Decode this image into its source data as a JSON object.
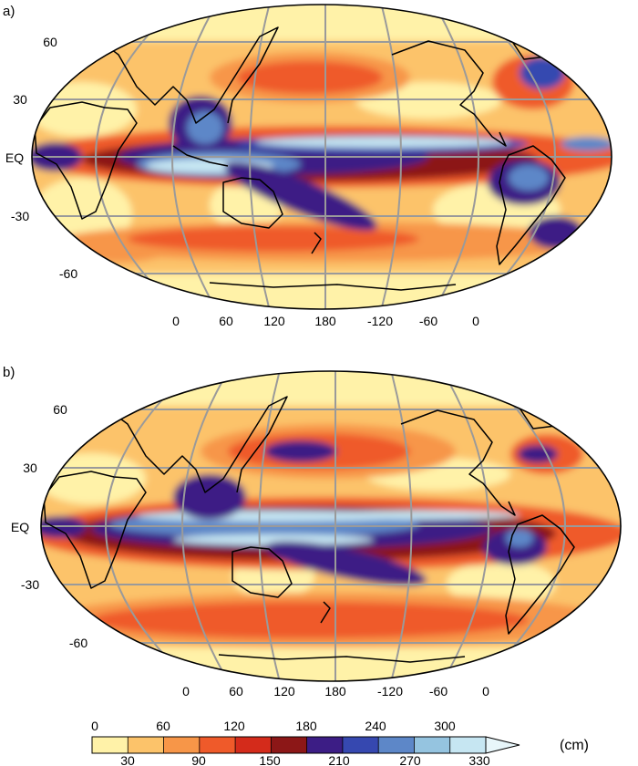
{
  "panels": [
    {
      "label": "a)",
      "lat_labels": [
        "60",
        "30",
        "EQ",
        "-30",
        "-60"
      ],
      "lon_labels": [
        "0",
        "60",
        "120",
        "180",
        "-120",
        "-60",
        "0"
      ]
    },
    {
      "label": "b)",
      "lat_labels": [
        "60",
        "30",
        "EQ",
        "-30",
        "-60"
      ],
      "lon_labels": [
        "0",
        "60",
        "120",
        "180",
        "-120",
        "-60",
        "0"
      ]
    }
  ],
  "colorbar": {
    "unit": "(cm)",
    "top_labels": [
      "0",
      "60",
      "120",
      "180",
      "240",
      "300"
    ],
    "bottom_labels": [
      "30",
      "90",
      "150",
      "210",
      "270",
      "330"
    ],
    "colors": [
      "#fff2a8",
      "#fcc36a",
      "#f79648",
      "#ef5a2a",
      "#d42b1b",
      "#8c1717",
      "#3c1d85",
      "#3648b0",
      "#5d87c8",
      "#95c4e0",
      "#c6e6f2",
      "#e8f6fa"
    ]
  }
}
